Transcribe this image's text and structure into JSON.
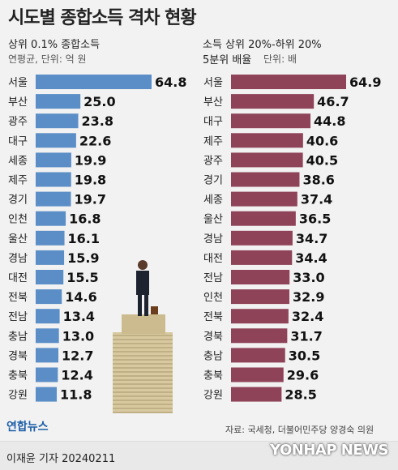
{
  "title": "시도별 종합소득 격차 현황",
  "left_panel": {
    "subtitle": "상위 0.1% 종합소득",
    "unit": "연평균, 단위: 억 원"
  },
  "right_panel": {
    "subtitle_line1": "소득 상위 20%-하위 20%",
    "subtitle_line2": "5분위 배율",
    "unit": "단위: 배"
  },
  "source": "자료: 국세청, 더불어민주당 양경숙 의원",
  "logo": "연합뉴스",
  "byline": "이재윤 기자  20240211",
  "watermark": "YONHAP NEWS",
  "colors": {
    "left_bar": "#5b8ec6",
    "right_bar": "#8e4358"
  },
  "chart_data": [
    {
      "type": "bar",
      "orientation": "horizontal",
      "title": "상위 0.1% 종합소득",
      "subtitle": "연평균, 단위: 억 원",
      "categories": [
        "서울",
        "부산",
        "광주",
        "대구",
        "세종",
        "제주",
        "경기",
        "인천",
        "울산",
        "경남",
        "대전",
        "전북",
        "전남",
        "충남",
        "경북",
        "충북",
        "강원"
      ],
      "values": [
        64.8,
        25.0,
        23.8,
        22.6,
        19.9,
        19.8,
        19.7,
        16.8,
        16.1,
        15.9,
        15.5,
        14.6,
        13.4,
        13.0,
        12.7,
        12.4,
        11.8
      ],
      "labels": [
        "64.8",
        "25.0",
        "23.8",
        "22.6",
        "19.9",
        "19.8",
        "19.7",
        "16.8",
        "16.1",
        "15.9",
        "15.5",
        "14.6",
        "13.4",
        "13.0",
        "12.7",
        "12.4",
        "11.8"
      ]
    },
    {
      "type": "bar",
      "orientation": "horizontal",
      "title": "소득 상위 20%-하위 20% 5분위 배율",
      "subtitle": "단위: 배",
      "categories": [
        "서울",
        "부산",
        "대구",
        "제주",
        "광주",
        "경기",
        "세종",
        "울산",
        "경남",
        "대전",
        "전남",
        "인천",
        "전북",
        "경북",
        "충남",
        "충북",
        "강원"
      ],
      "values": [
        64.9,
        46.7,
        44.8,
        40.6,
        40.5,
        38.6,
        37.4,
        36.5,
        34.7,
        34.4,
        33.0,
        32.9,
        32.4,
        31.7,
        30.5,
        29.6,
        28.5
      ],
      "labels": [
        "64.9",
        "46.7",
        "44.8",
        "40.6",
        "40.5",
        "38.6",
        "37.4",
        "36.5",
        "34.7",
        "34.4",
        "33.0",
        "32.9",
        "32.4",
        "31.7",
        "30.5",
        "29.6",
        "28.5"
      ]
    }
  ]
}
